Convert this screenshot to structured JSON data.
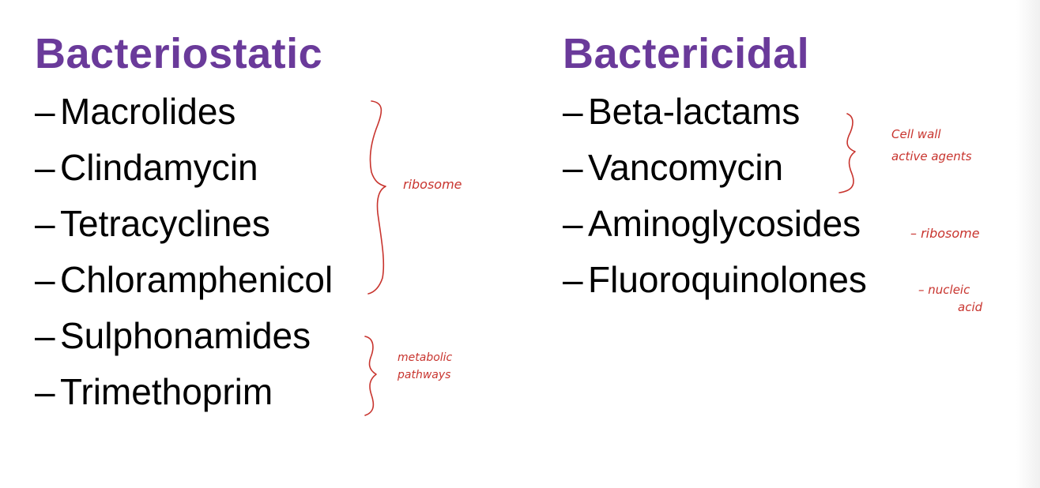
{
  "left": {
    "heading": "Bacteriostatic",
    "items": [
      {
        "dash": "–",
        "label": "Macrolides"
      },
      {
        "dash": "–",
        "label": "Clindamycin"
      },
      {
        "dash": "–",
        "label": "Tetracyclines"
      },
      {
        "dash": "–",
        "label": "Chloramphenicol"
      },
      {
        "dash": "–",
        "label": "Sulphonamides"
      },
      {
        "dash": "–",
        "label": "Trimethoprim"
      }
    ]
  },
  "right": {
    "heading": "Bactericidal",
    "items": [
      {
        "dash": "–",
        "label": "Beta-lactams"
      },
      {
        "dash": "–",
        "label": "Vancomycin"
      },
      {
        "dash": "–",
        "label": "Aminoglycosides"
      },
      {
        "dash": "–",
        "label": "Fluoroquinolones"
      }
    ]
  },
  "annotations": {
    "ink_color": "#c8342e",
    "ribosome_left": "ribosome",
    "metabolic": [
      "metabolic",
      "pathways"
    ],
    "cell_wall": [
      "Cell wall",
      "active agents"
    ],
    "ribosome_right": "– ribosome",
    "nucleic": [
      "– nucleic",
      "acid"
    ]
  }
}
